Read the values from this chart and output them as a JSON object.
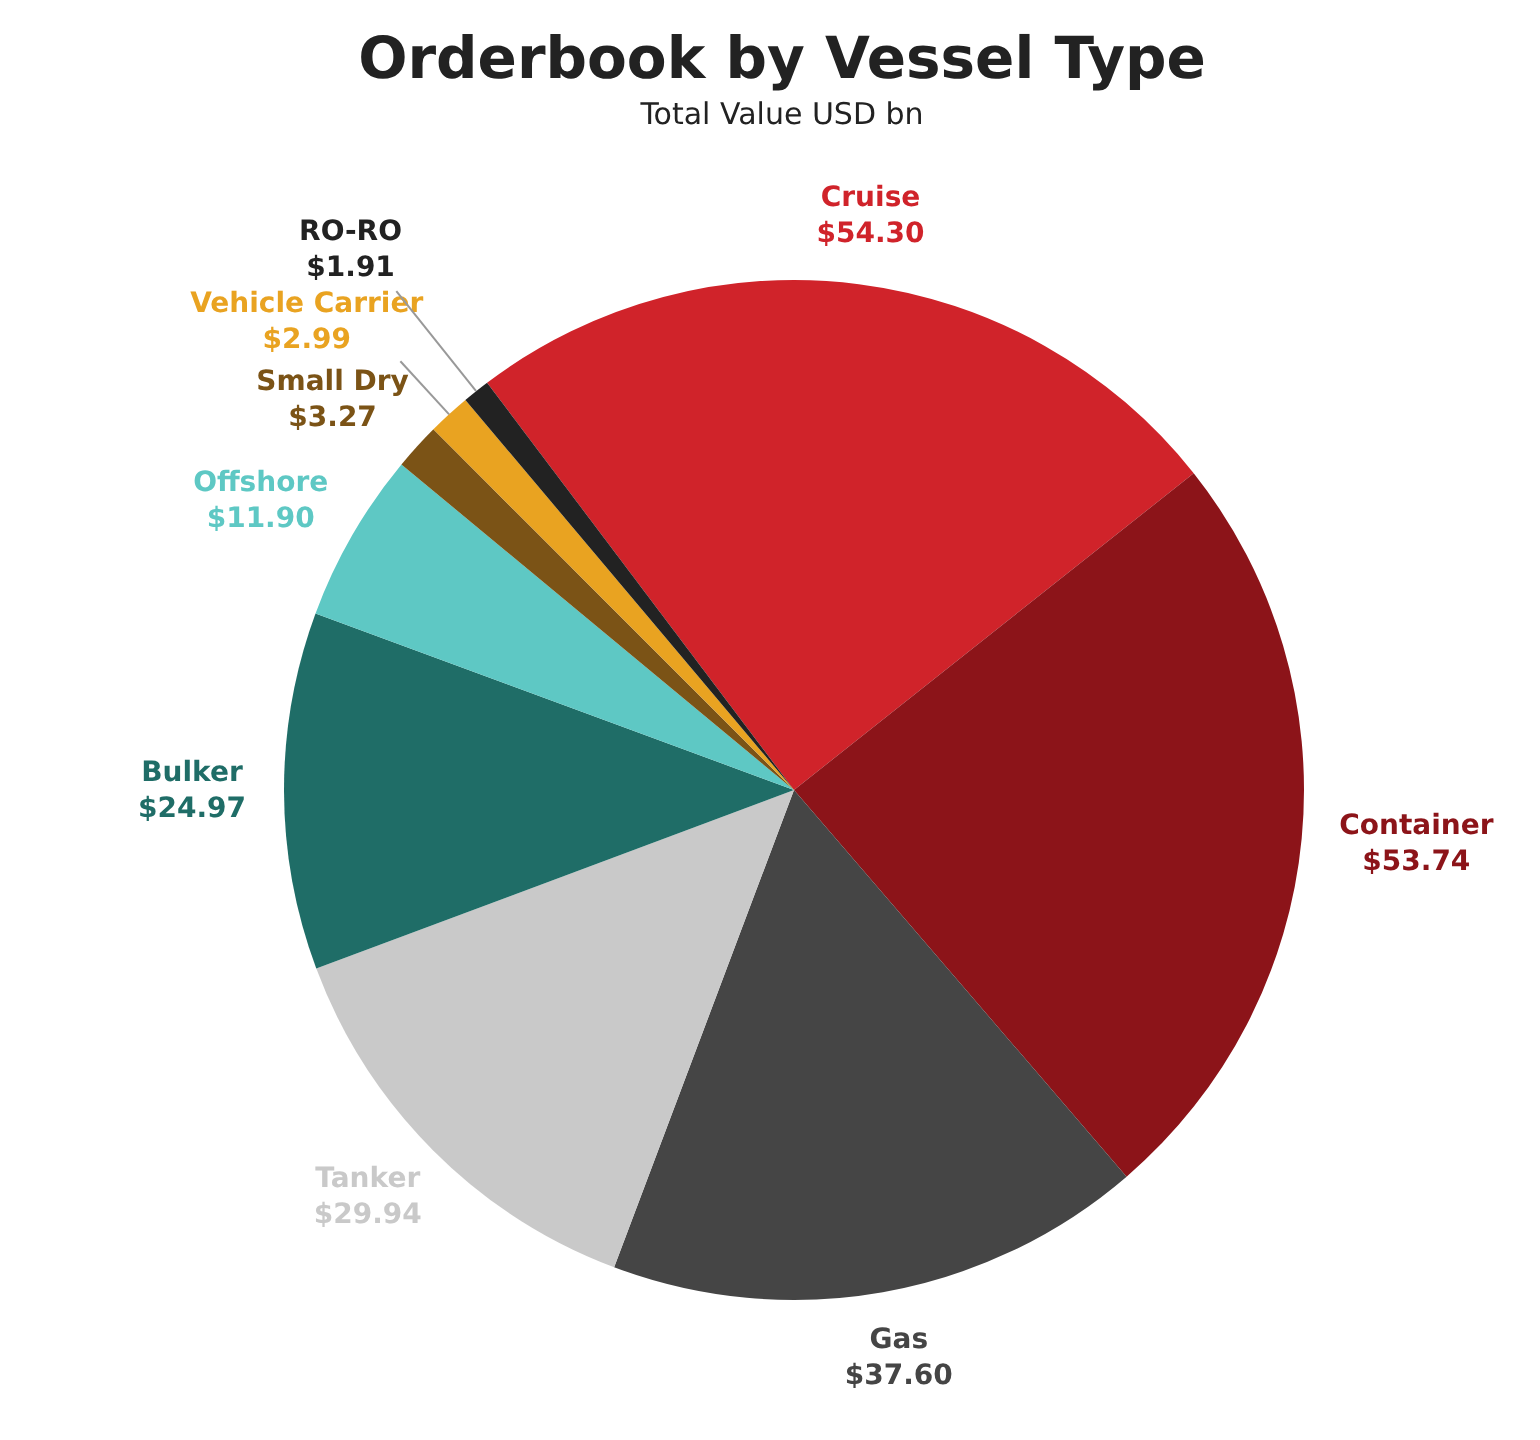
{
  "chart_data": {
    "type": "pie",
    "title": "Orderbook by Vessel Type",
    "subtitle": "Total Value USD bn",
    "categories": [
      "Cruise",
      "Container",
      "Gas",
      "Tanker",
      "Bulker",
      "Offshore",
      "Small Dry",
      "Vehicle Carrier",
      "RO-RO"
    ],
    "values": [
      54.3,
      53.74,
      37.6,
      29.94,
      24.97,
      11.9,
      3.27,
      2.99,
      1.91
    ],
    "value_labels": [
      "$54.30",
      "$53.74",
      "$37.60",
      "$29.94",
      "$24.97",
      "$11.90",
      "$3.27",
      "$2.99",
      "$1.91"
    ],
    "colors": [
      "#d0232a",
      "#8c1419",
      "#454545",
      "#c9c9c9",
      "#1f6d67",
      "#5ec8c4",
      "#7b5316",
      "#e9a321",
      "#222222"
    ],
    "legend": false
  }
}
